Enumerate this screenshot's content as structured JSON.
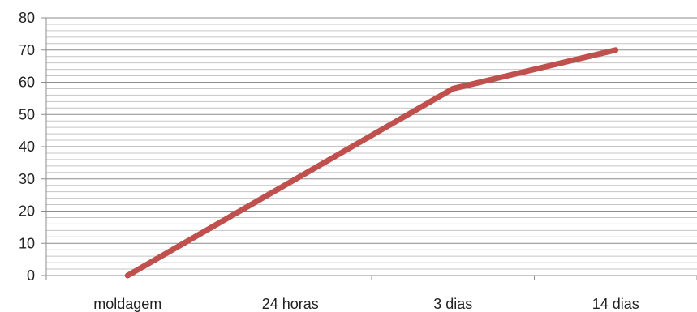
{
  "chart_data": {
    "type": "line",
    "title": "",
    "xlabel": "",
    "ylabel": "",
    "categories": [
      "moldagem",
      "24 horas",
      "3 dias",
      "14 dias"
    ],
    "ylim": [
      0,
      80
    ],
    "y_ticks": [
      0,
      10,
      20,
      30,
      40,
      50,
      60,
      70,
      80
    ],
    "minor_grid_step": 2,
    "grid": true,
    "legend": "none",
    "series": [
      {
        "color": "#c0504d",
        "values": [
          0,
          29,
          58,
          70
        ]
      }
    ]
  }
}
